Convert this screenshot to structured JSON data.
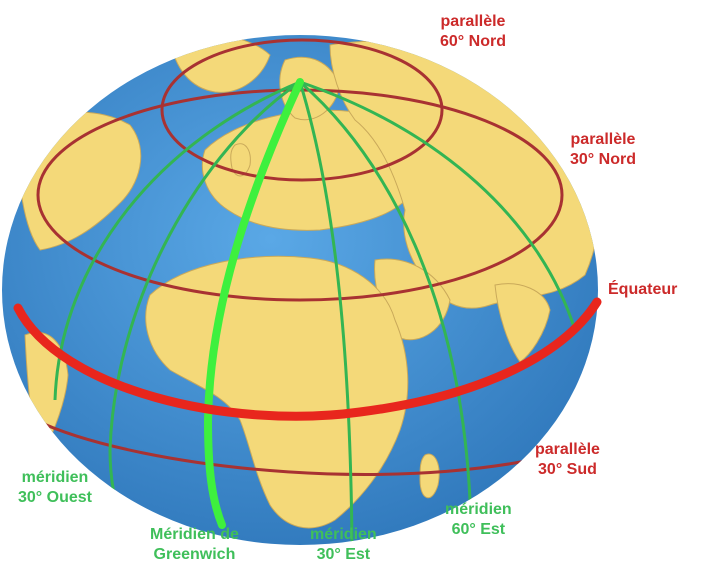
{
  "colors": {
    "ocean": "#3d8fd1",
    "land": "#f4d979",
    "parallel": "#a83232",
    "equator": "#e8261d",
    "meridian": "#33b553",
    "greenwich": "#3ef03e",
    "label_red": "#cc2a2a",
    "label_green": "#3fbf5a"
  },
  "labels": {
    "parallel_60n": {
      "line1": "parallèle",
      "line2": "60° Nord"
    },
    "parallel_30n": {
      "line1": "parallèle",
      "line2": "30° Nord"
    },
    "equator": {
      "line1": "Équateur"
    },
    "parallel_30s": {
      "line1": "parallèle",
      "line2": "30° Sud"
    },
    "meridian_30w": {
      "line1": "méridien",
      "line2": "30° Ouest"
    },
    "greenwich": {
      "line1": "Méridien de",
      "line2": "Greenwich"
    },
    "meridian_30e": {
      "line1": "méridien",
      "line2": "30° Est"
    },
    "meridian_60e": {
      "line1": "méridien",
      "line2": "60° Est"
    }
  }
}
